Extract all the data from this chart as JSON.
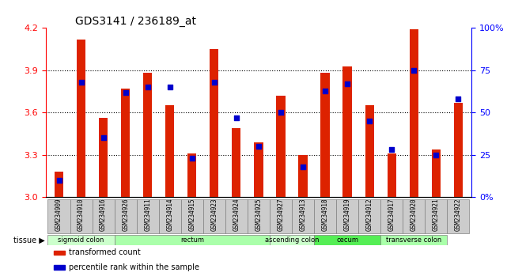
{
  "title": "GDS3141 / 236189_at",
  "samples": [
    "GSM234909",
    "GSM234910",
    "GSM234916",
    "GSM234926",
    "GSM234911",
    "GSM234914",
    "GSM234915",
    "GSM234923",
    "GSM234924",
    "GSM234925",
    "GSM234927",
    "GSM234913",
    "GSM234918",
    "GSM234919",
    "GSM234912",
    "GSM234917",
    "GSM234920",
    "GSM234921",
    "GSM234922"
  ],
  "bar_values": [
    3.18,
    4.12,
    3.56,
    3.77,
    3.88,
    3.65,
    3.31,
    4.05,
    3.49,
    3.39,
    3.72,
    3.3,
    3.88,
    3.93,
    3.65,
    3.31,
    4.19,
    3.34,
    3.67
  ],
  "dot_values": [
    10,
    68,
    35,
    62,
    65,
    65,
    23,
    68,
    47,
    30,
    50,
    18,
    63,
    67,
    45,
    28,
    75,
    25,
    58
  ],
  "ylim_left": [
    3.0,
    4.2
  ],
  "ylim_right": [
    0,
    100
  ],
  "yticks_left": [
    3.0,
    3.3,
    3.6,
    3.9,
    4.2
  ],
  "yticks_right": [
    0,
    25,
    50,
    75,
    100
  ],
  "ytick_labels_right": [
    "0%",
    "25",
    "50",
    "75",
    "100%"
  ],
  "bar_color": "#DD2200",
  "dot_color": "#0000CC",
  "grid_color": "#000000",
  "tissue_groups": [
    {
      "label": "sigmoid colon",
      "start": 0,
      "end": 3,
      "color": "#CCFFCC"
    },
    {
      "label": "rectum",
      "start": 3,
      "end": 10,
      "color": "#AAFFAA"
    },
    {
      "label": "ascending colon",
      "start": 10,
      "end": 12,
      "color": "#CCFFCC"
    },
    {
      "label": "cecum",
      "start": 12,
      "end": 15,
      "color": "#55EE55"
    },
    {
      "label": "transverse colon",
      "start": 15,
      "end": 18,
      "color": "#AAFFAA"
    }
  ],
  "legend_items": [
    {
      "label": "transformed count",
      "color": "#DD2200"
    },
    {
      "label": "percentile rank within the sample",
      "color": "#0000CC"
    }
  ],
  "xlabel_tissue": "tissue",
  "background_plot": "#FFFFFF",
  "background_tick": "#CCCCCC"
}
